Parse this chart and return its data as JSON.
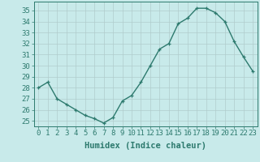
{
  "x": [
    0,
    1,
    2,
    3,
    4,
    5,
    6,
    7,
    8,
    9,
    10,
    11,
    12,
    13,
    14,
    15,
    16,
    17,
    18,
    19,
    20,
    21,
    22,
    23
  ],
  "y": [
    28,
    28.5,
    27,
    26.5,
    26,
    25.5,
    25.2,
    24.8,
    25.3,
    26.8,
    27.3,
    28.5,
    30,
    31.5,
    32,
    33.8,
    34.3,
    35.2,
    35.2,
    34.8,
    34,
    32.2,
    30.8,
    29.5
  ],
  "line_color": "#2d7a6e",
  "marker": "+",
  "marker_size": 3.5,
  "bg_color": "#c8eaea",
  "grid_color": "#b0cccc",
  "xlabel": "Humidex (Indice chaleur)",
  "ylabel_ticks": [
    25,
    26,
    27,
    28,
    29,
    30,
    31,
    32,
    33,
    34,
    35
  ],
  "ylim": [
    24.5,
    35.8
  ],
  "xlim": [
    -0.5,
    23.5
  ],
  "xlabel_fontsize": 7.5,
  "tick_fontsize": 6.5,
  "line_width": 1.0
}
